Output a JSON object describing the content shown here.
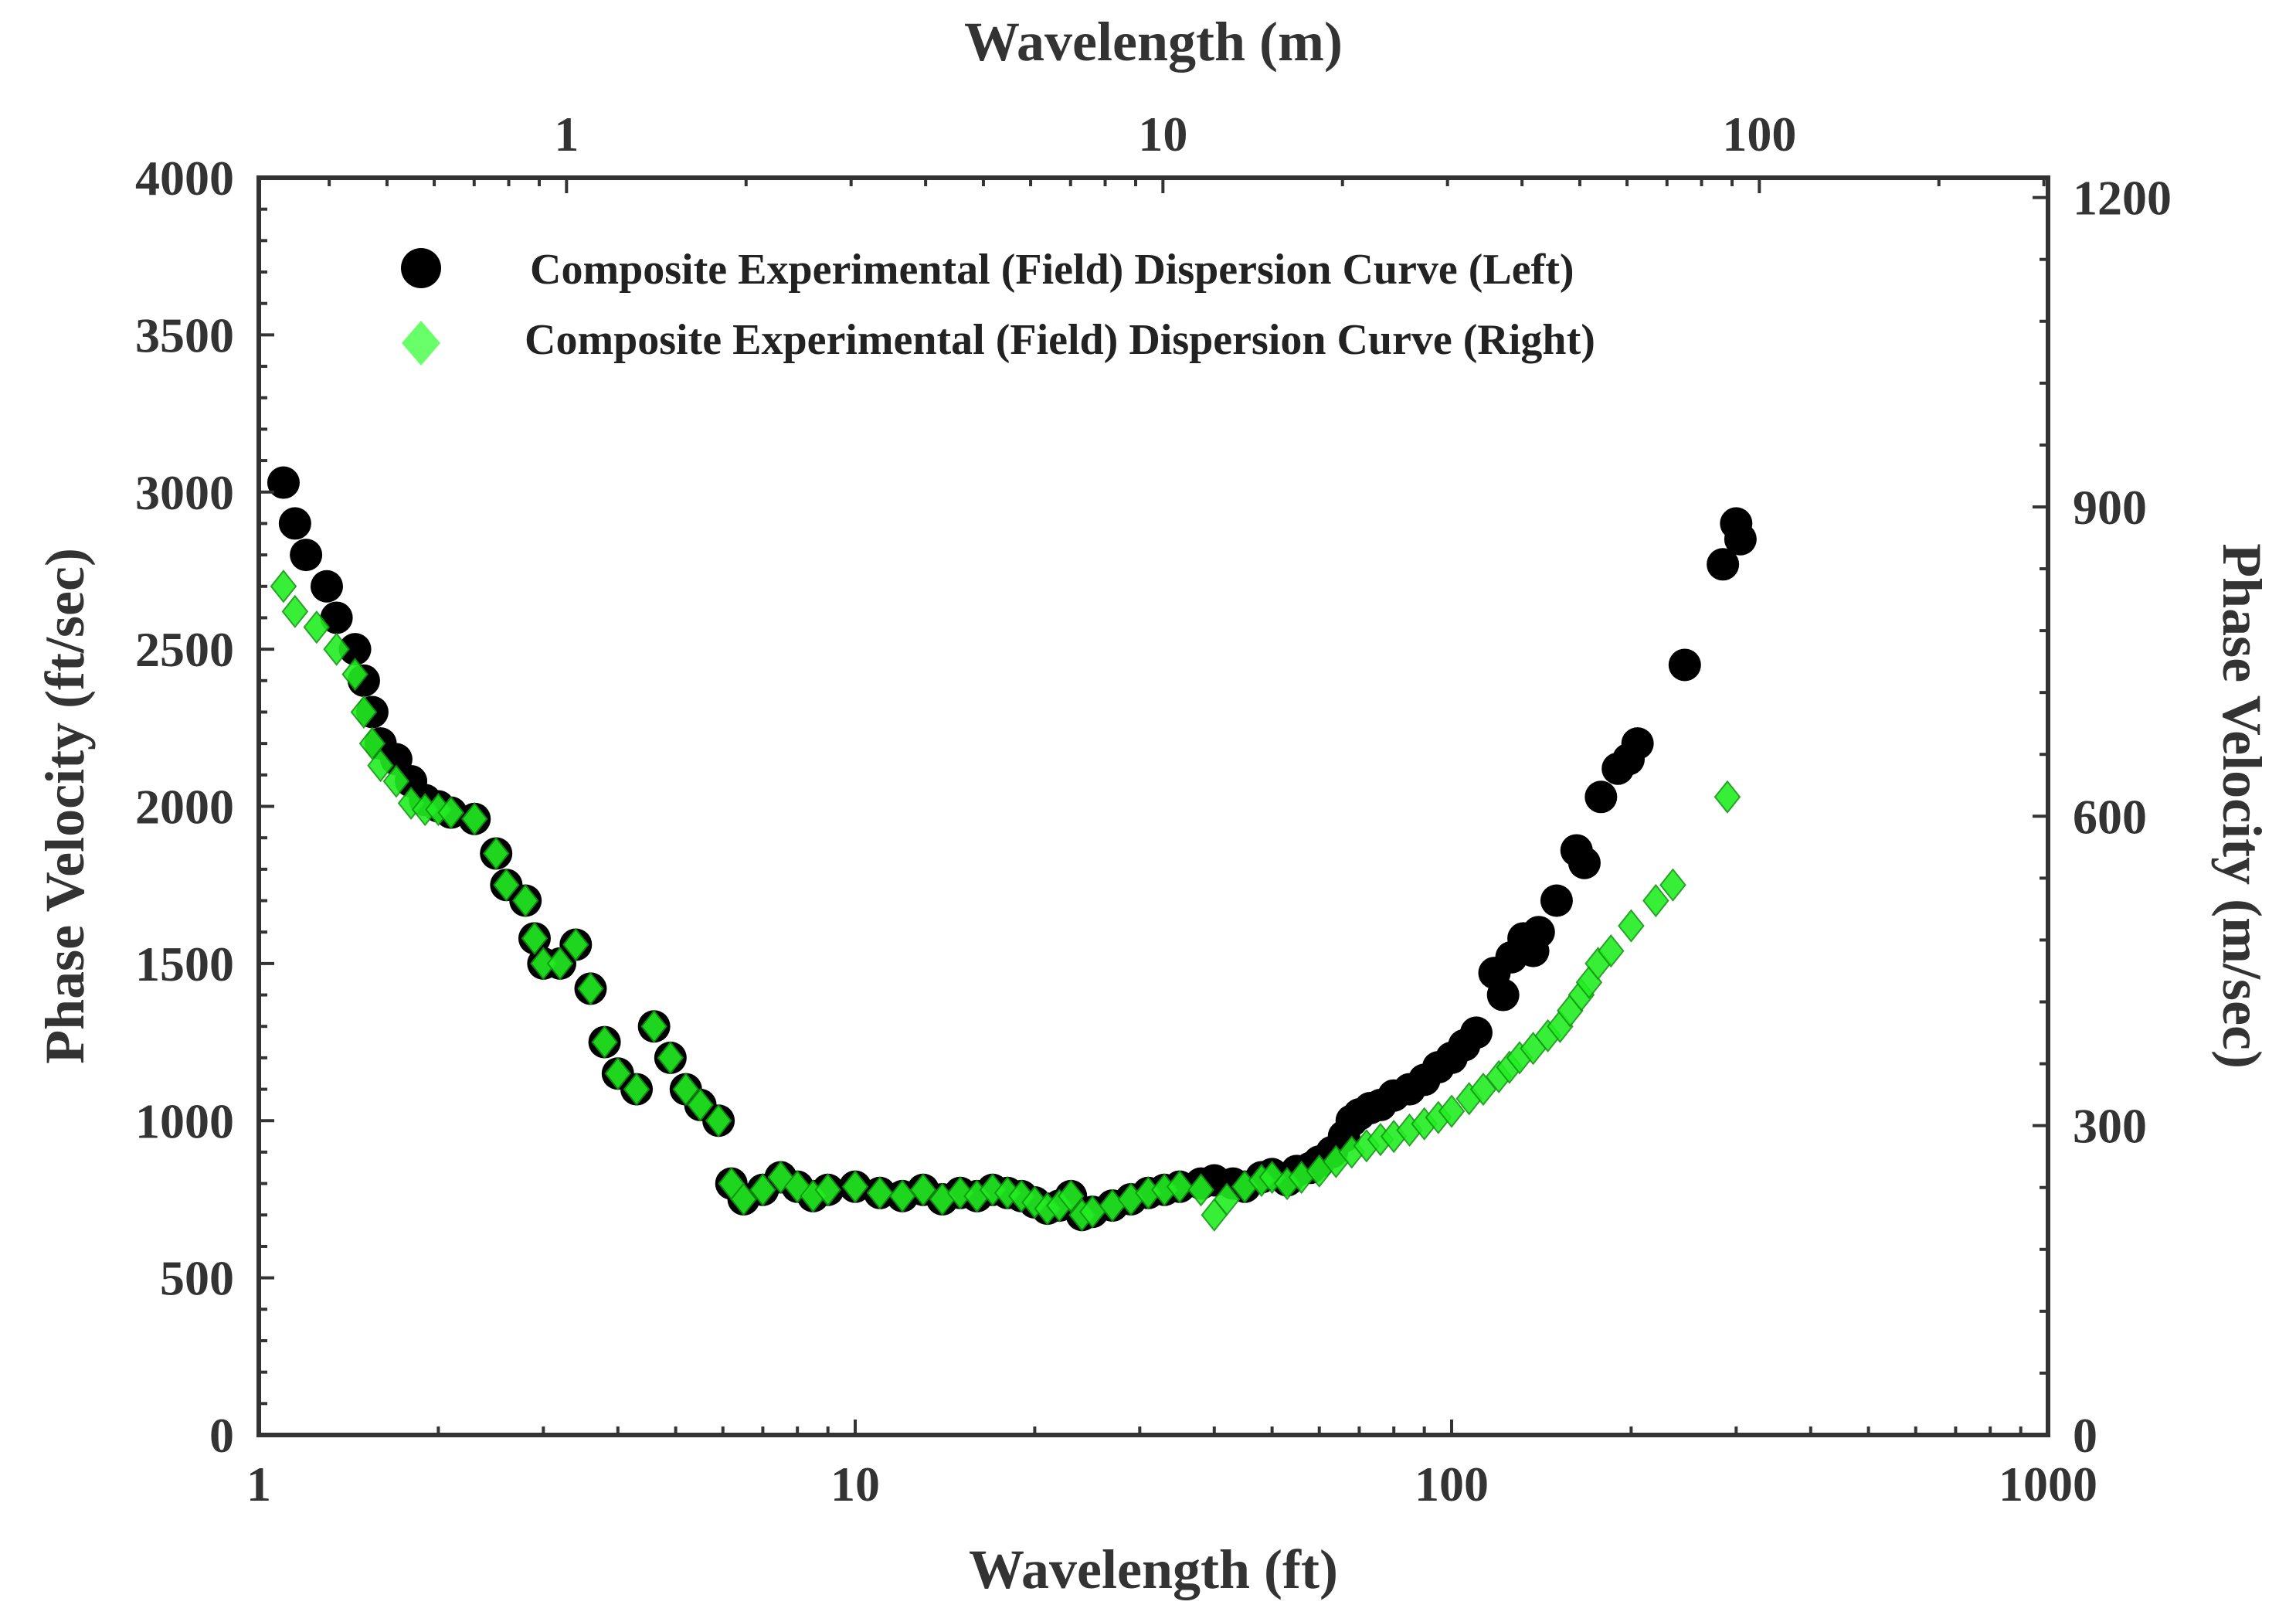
{
  "chart_data": {
    "type": "scatter",
    "x_scale": "log",
    "xlabel_bottom": "Wavelength (ft)",
    "xlabel_top": "Wavelength (m)",
    "ylabel_left": "Phase Velocity (ft/sec)",
    "ylabel_right": "Phase Velocity (m/sec)",
    "xlim": [
      1,
      1000
    ],
    "ylim": [
      0,
      4000
    ],
    "xlim_top_m": [
      0.3048,
      304.8
    ],
    "ylim_right_m": [
      0,
      1219.2
    ],
    "x_ticks_bottom": [
      1,
      10,
      100,
      1000
    ],
    "x_tick_labels_bottom": [
      "1",
      "10",
      "100",
      "1000"
    ],
    "x_ticks_top_m": [
      1,
      10,
      100
    ],
    "x_tick_labels_top": [
      "1",
      "10",
      "100"
    ],
    "y_ticks_left": [
      0,
      500,
      1000,
      1500,
      2000,
      2500,
      3000,
      3500,
      4000
    ],
    "y_tick_labels_left": [
      "0",
      "500",
      "1000",
      "1500",
      "2000",
      "2500",
      "3000",
      "3500",
      "4000"
    ],
    "y_ticks_right_m": [
      0,
      300,
      600,
      900,
      1200
    ],
    "y_tick_labels_right": [
      "0",
      "300",
      "600",
      "900",
      "1200"
    ],
    "grid": false,
    "legend_position": "top-left",
    "colors": {
      "left": "#000000",
      "right": "#22ee22",
      "axis": "#333333"
    },
    "series": [
      {
        "name": "Composite Experimental (Field) Dispersion Curve (Left)",
        "marker": "circle",
        "color": "#000000",
        "points": [
          [
            1.1,
            3030
          ],
          [
            1.15,
            2900
          ],
          [
            1.2,
            2800
          ],
          [
            1.3,
            2700
          ],
          [
            1.35,
            2600
          ],
          [
            1.45,
            2500
          ],
          [
            1.5,
            2400
          ],
          [
            1.55,
            2300
          ],
          [
            1.6,
            2200
          ],
          [
            1.7,
            2150
          ],
          [
            1.8,
            2080
          ],
          [
            1.9,
            2020
          ],
          [
            2.0,
            2000
          ],
          [
            2.1,
            1980
          ],
          [
            2.3,
            1960
          ],
          [
            2.5,
            1850
          ],
          [
            2.6,
            1750
          ],
          [
            2.8,
            1700
          ],
          [
            2.9,
            1580
          ],
          [
            3.0,
            1500
          ],
          [
            3.2,
            1500
          ],
          [
            3.4,
            1560
          ],
          [
            3.6,
            1420
          ],
          [
            3.8,
            1250
          ],
          [
            4.0,
            1150
          ],
          [
            4.3,
            1100
          ],
          [
            4.6,
            1300
          ],
          [
            4.9,
            1200
          ],
          [
            5.2,
            1100
          ],
          [
            5.5,
            1050
          ],
          [
            5.9,
            1000
          ],
          [
            6.2,
            800
          ],
          [
            6.5,
            750
          ],
          [
            7.0,
            780
          ],
          [
            7.5,
            820
          ],
          [
            8,
            790
          ],
          [
            8.5,
            760
          ],
          [
            9,
            780
          ],
          [
            10,
            790
          ],
          [
            11,
            770
          ],
          [
            12,
            760
          ],
          [
            13,
            780
          ],
          [
            14,
            750
          ],
          [
            15,
            770
          ],
          [
            16,
            760
          ],
          [
            17,
            780
          ],
          [
            18,
            770
          ],
          [
            19,
            760
          ],
          [
            20,
            740
          ],
          [
            21,
            720
          ],
          [
            22,
            730
          ],
          [
            23,
            760
          ],
          [
            24,
            700
          ],
          [
            25,
            710
          ],
          [
            27,
            730
          ],
          [
            29,
            750
          ],
          [
            31,
            770
          ],
          [
            33,
            780
          ],
          [
            35,
            790
          ],
          [
            38,
            800
          ],
          [
            40,
            810
          ],
          [
            43,
            800
          ],
          [
            45,
            790
          ],
          [
            48,
            820
          ],
          [
            50,
            830
          ],
          [
            53,
            810
          ],
          [
            55,
            840
          ],
          [
            58,
            850
          ],
          [
            60,
            870
          ],
          [
            63,
            900
          ],
          [
            66,
            950
          ],
          [
            68,
            1000
          ],
          [
            70,
            1020
          ],
          [
            73,
            1040
          ],
          [
            76,
            1050
          ],
          [
            80,
            1080
          ],
          [
            85,
            1100
          ],
          [
            90,
            1130
          ],
          [
            95,
            1170
          ],
          [
            100,
            1200
          ],
          [
            105,
            1240
          ],
          [
            110,
            1280
          ],
          [
            118,
            1470
          ],
          [
            122,
            1400
          ],
          [
            126,
            1520
          ],
          [
            132,
            1580
          ],
          [
            137,
            1540
          ],
          [
            140,
            1600
          ],
          [
            150,
            1700
          ],
          [
            162,
            1860
          ],
          [
            167,
            1820
          ],
          [
            178,
            2030
          ],
          [
            190,
            2120
          ],
          [
            198,
            2150
          ],
          [
            205,
            2200
          ],
          [
            246,
            2450
          ],
          [
            285,
            2770
          ],
          [
            300,
            2900
          ],
          [
            305,
            2850
          ]
        ]
      },
      {
        "name": "Composite Experimental (Field) Dispersion Curve (Right)",
        "marker": "diamond",
        "color": "#22ee22",
        "points": [
          [
            1.1,
            2700
          ],
          [
            1.15,
            2620
          ],
          [
            1.25,
            2570
          ],
          [
            1.35,
            2500
          ],
          [
            1.45,
            2420
          ],
          [
            1.5,
            2300
          ],
          [
            1.55,
            2200
          ],
          [
            1.6,
            2130
          ],
          [
            1.7,
            2080
          ],
          [
            1.8,
            2010
          ],
          [
            1.9,
            1990
          ],
          [
            2.0,
            1990
          ],
          [
            2.1,
            1980
          ],
          [
            2.3,
            1960
          ],
          [
            2.5,
            1850
          ],
          [
            2.6,
            1750
          ],
          [
            2.8,
            1700
          ],
          [
            2.9,
            1580
          ],
          [
            3.0,
            1500
          ],
          [
            3.2,
            1500
          ],
          [
            3.4,
            1560
          ],
          [
            3.6,
            1420
          ],
          [
            3.8,
            1250
          ],
          [
            4.0,
            1150
          ],
          [
            4.3,
            1100
          ],
          [
            4.6,
            1300
          ],
          [
            4.9,
            1200
          ],
          [
            5.2,
            1100
          ],
          [
            5.5,
            1050
          ],
          [
            5.9,
            1000
          ],
          [
            6.2,
            800
          ],
          [
            6.5,
            750
          ],
          [
            7.0,
            780
          ],
          [
            7.5,
            820
          ],
          [
            8,
            790
          ],
          [
            8.5,
            760
          ],
          [
            9,
            780
          ],
          [
            10,
            790
          ],
          [
            11,
            770
          ],
          [
            12,
            760
          ],
          [
            13,
            780
          ],
          [
            14,
            750
          ],
          [
            15,
            770
          ],
          [
            16,
            760
          ],
          [
            17,
            780
          ],
          [
            18,
            770
          ],
          [
            19,
            760
          ],
          [
            20,
            740
          ],
          [
            21,
            720
          ],
          [
            22,
            730
          ],
          [
            23,
            760
          ],
          [
            24,
            700
          ],
          [
            25,
            710
          ],
          [
            27,
            730
          ],
          [
            29,
            750
          ],
          [
            31,
            770
          ],
          [
            33,
            780
          ],
          [
            35,
            790
          ],
          [
            38,
            780
          ],
          [
            40,
            700
          ],
          [
            42,
            750
          ],
          [
            45,
            790
          ],
          [
            48,
            810
          ],
          [
            50,
            820
          ],
          [
            53,
            800
          ],
          [
            56,
            820
          ],
          [
            60,
            840
          ],
          [
            64,
            870
          ],
          [
            68,
            900
          ],
          [
            72,
            920
          ],
          [
            76,
            940
          ],
          [
            80,
            950
          ],
          [
            85,
            970
          ],
          [
            90,
            990
          ],
          [
            95,
            1010
          ],
          [
            100,
            1030
          ],
          [
            107,
            1070
          ],
          [
            113,
            1100
          ],
          [
            120,
            1140
          ],
          [
            125,
            1170
          ],
          [
            130,
            1200
          ],
          [
            137,
            1230
          ],
          [
            145,
            1270
          ],
          [
            152,
            1300
          ],
          [
            158,
            1350
          ],
          [
            165,
            1400
          ],
          [
            170,
            1440
          ],
          [
            176,
            1500
          ],
          [
            185,
            1540
          ],
          [
            200,
            1620
          ],
          [
            220,
            1700
          ],
          [
            235,
            1750
          ],
          [
            290,
            2030
          ]
        ]
      }
    ]
  },
  "legend": {
    "left_label": "Composite Experimental (Field) Dispersion Curve (Left)",
    "right_label": "Composite Experimental (Field) Dispersion Curve (Right)"
  }
}
